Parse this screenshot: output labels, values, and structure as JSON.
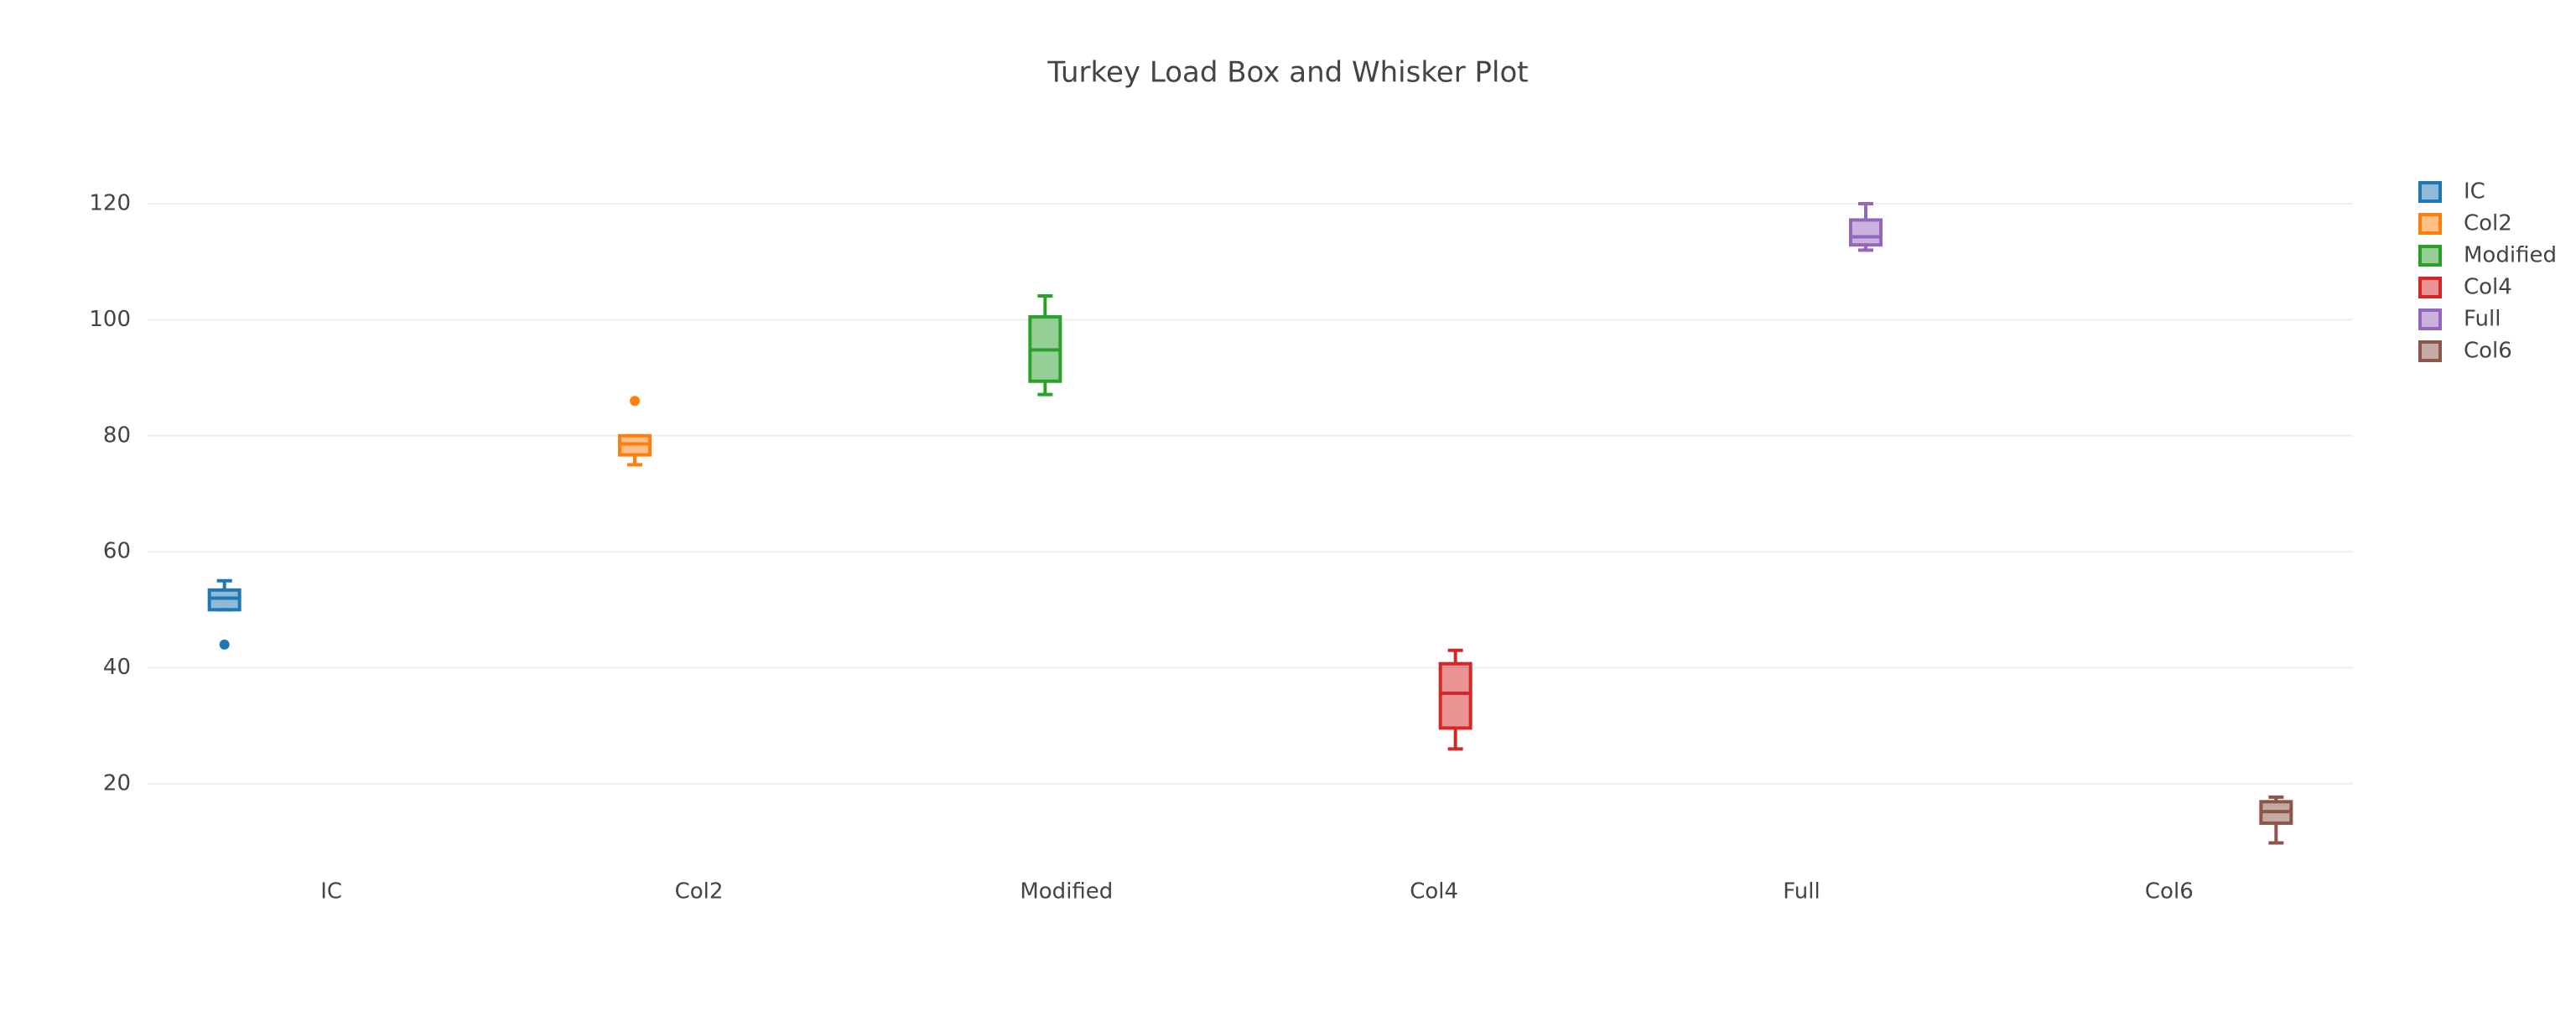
{
  "chart_data": {
    "type": "box",
    "title": "Turkey Load Box and Whisker Plot",
    "categories": [
      "IC",
      "Col2",
      "Modified",
      "Col4",
      "Full",
      "Col6"
    ],
    "ylim": [
      6.4,
      126.8
    ],
    "yticks": [
      20,
      40,
      60,
      80,
      100,
      120
    ],
    "grid": true,
    "legend": "right",
    "series": [
      {
        "name": "IC",
        "color": "#1f77b4",
        "lower": 50,
        "q1": 50,
        "median": 52,
        "q3": 53.4,
        "upper": 55,
        "outliers": [
          44
        ]
      },
      {
        "name": "Col2",
        "color": "#ff7f0e",
        "lower": 75,
        "q1": 76.7,
        "median": 78.6,
        "q3": 80,
        "upper": 80,
        "outliers": [
          86
        ]
      },
      {
        "name": "Modified",
        "color": "#2ca02c",
        "lower": 87.1,
        "q1": 89.4,
        "median": 94.8,
        "q3": 100.5,
        "upper": 104.1,
        "outliers": []
      },
      {
        "name": "Col4",
        "color": "#d62728",
        "lower": 26,
        "q1": 29.6,
        "median": 35.6,
        "q3": 40.7,
        "upper": 43,
        "outliers": []
      },
      {
        "name": "Full",
        "color": "#9467bd",
        "lower": 112,
        "q1": 112.9,
        "median": 114.3,
        "q3": 117.2,
        "upper": 120,
        "outliers": []
      },
      {
        "name": "Col6",
        "color": "#8c564b",
        "lower": 9.8,
        "q1": 13.2,
        "median": 15.2,
        "q3": 16.9,
        "upper": 17.7,
        "outliers": []
      }
    ]
  }
}
